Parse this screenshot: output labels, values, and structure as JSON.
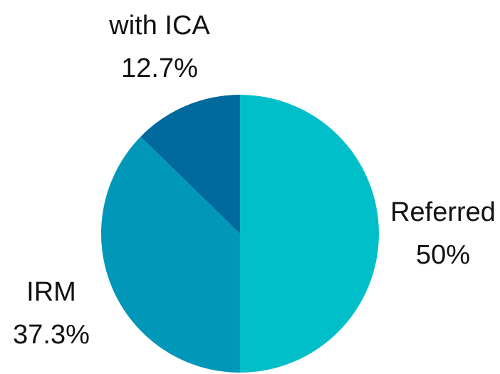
{
  "chart_data": {
    "type": "pie",
    "categories": [
      "Referred",
      "IRM",
      "with ICA"
    ],
    "values": [
      50,
      37.3,
      12.7
    ],
    "value_labels": [
      "50%",
      "37.3%",
      "12.7%"
    ],
    "colors": [
      "#00bfc9",
      "#0097b9",
      "#00699d"
    ]
  }
}
